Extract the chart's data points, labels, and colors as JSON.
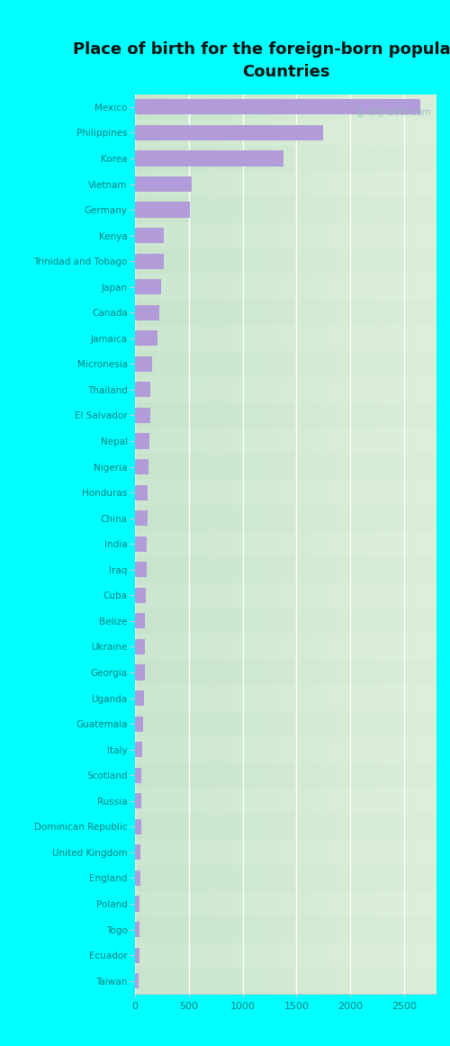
{
  "title": "Place of birth for the foreign-born population -\nCountries",
  "countries": [
    "Mexico",
    "Philippines",
    "Korea",
    "Vietnam",
    "Germany",
    "Kenya",
    "Trinidad and Tobago",
    "Japan",
    "Canada",
    "Jamaica",
    "Micronesia",
    "Thailand",
    "El Salvador",
    "Nepal",
    "Nigeria",
    "Honduras",
    "China",
    "India",
    "Iraq",
    "Cuba",
    "Belize",
    "Ukraine",
    "Georgia",
    "Uganda",
    "Guatemala",
    "Italy",
    "Scotland",
    "Russia",
    "Dominican Republic",
    "United Kingdom",
    "England",
    "Poland",
    "Togo",
    "Ecuador",
    "Taiwan"
  ],
  "values": [
    2650,
    1750,
    1380,
    530,
    510,
    270,
    265,
    240,
    225,
    210,
    155,
    145,
    140,
    130,
    125,
    120,
    115,
    110,
    105,
    100,
    95,
    90,
    88,
    80,
    75,
    65,
    60,
    58,
    55,
    52,
    48,
    45,
    42,
    40,
    35
  ],
  "bar_color": "#b19cd9",
  "fig_bg_color": "#00ffff",
  "plot_bg_left": "#ddeedd",
  "plot_bg_right": "#f8faf8",
  "row_even_color": "#e8f3e8",
  "row_odd_color": "#f2f8f2",
  "label_color": "#008080",
  "tick_color": "#008080",
  "grid_color": "#ffffff",
  "title_color": "#111111",
  "watermark": "@ City-Data.com",
  "xlim": [
    0,
    2800
  ],
  "xticks": [
    0,
    500,
    1000,
    1500,
    2000,
    2500
  ],
  "figsize": [
    5.0,
    11.62
  ],
  "dpi": 100
}
